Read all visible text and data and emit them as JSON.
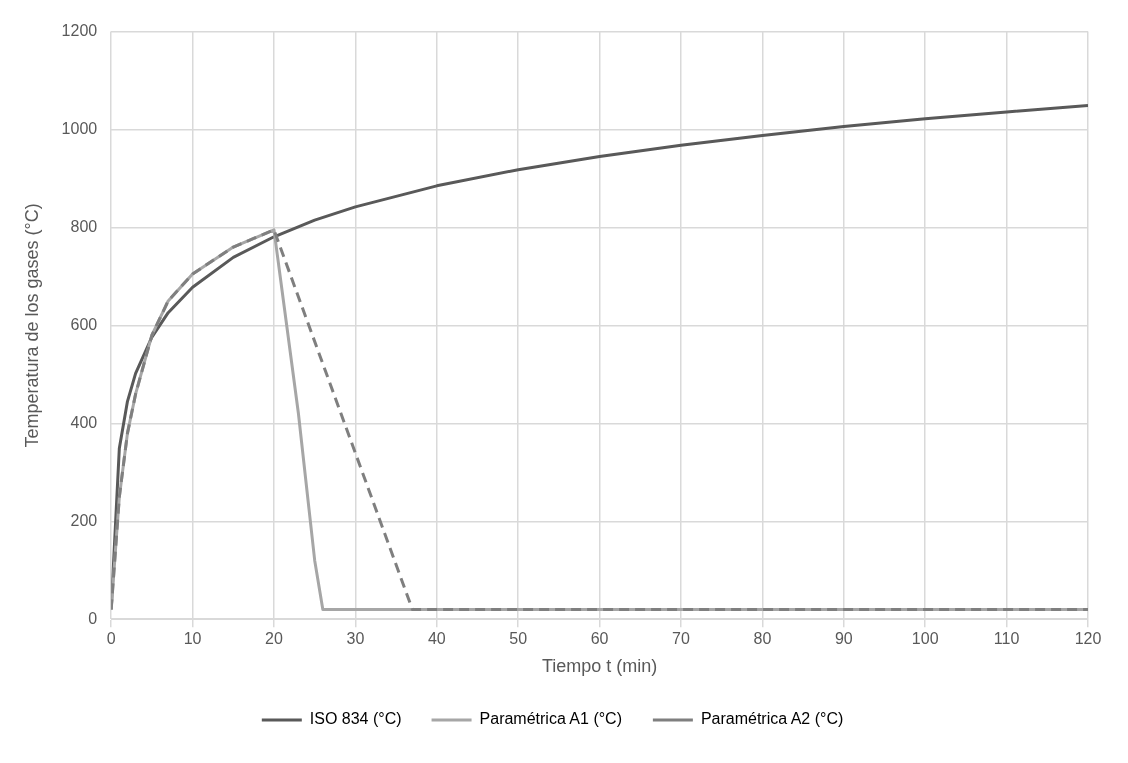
{
  "chart_data": {
    "type": "line",
    "xlabel": "Tiempo t (min)",
    "ylabel": "Temperatura de los gases (°C)",
    "xlim": [
      0,
      120
    ],
    "xticks": [
      0,
      10,
      20,
      30,
      40,
      50,
      60,
      70,
      80,
      90,
      100,
      110,
      120
    ],
    "ylim": [
      0,
      1200
    ],
    "yticks": [
      0,
      200,
      400,
      600,
      800,
      1000,
      1200
    ],
    "grid": true,
    "legend": "bottom",
    "marker": "none",
    "series": [
      {
        "name": "ISO 834 (°C)",
        "color": "#595959",
        "line_style": "solid",
        "x": [
          0,
          1,
          2,
          3,
          5,
          7,
          10,
          15,
          20,
          25,
          30,
          40,
          50,
          60,
          70,
          80,
          90,
          100,
          110,
          120
        ],
        "values": [
          20,
          349,
          445,
          502,
          576,
          626,
          678,
          739,
          781,
          815,
          842,
          885,
          918,
          945,
          968,
          988,
          1006,
          1022,
          1036,
          1049
        ]
      },
      {
        "name": "Paramétrica A1 (°C)",
        "color": "#a6a6a6",
        "line_style": "solid",
        "x": [
          0,
          1,
          2,
          3,
          5,
          7,
          10,
          15,
          20,
          23,
          25,
          26,
          120
        ],
        "values": [
          20,
          250,
          380,
          460,
          580,
          650,
          705,
          760,
          795,
          420,
          120,
          20,
          20
        ]
      },
      {
        "name": "Paramétrica A2 (°C)",
        "color": "#7f7f7f",
        "line_style": "dashed",
        "x": [
          0,
          1,
          2,
          3,
          5,
          7,
          10,
          15,
          20,
          37,
          120
        ],
        "values": [
          20,
          250,
          380,
          460,
          580,
          650,
          705,
          760,
          795,
          20,
          20
        ]
      }
    ]
  }
}
